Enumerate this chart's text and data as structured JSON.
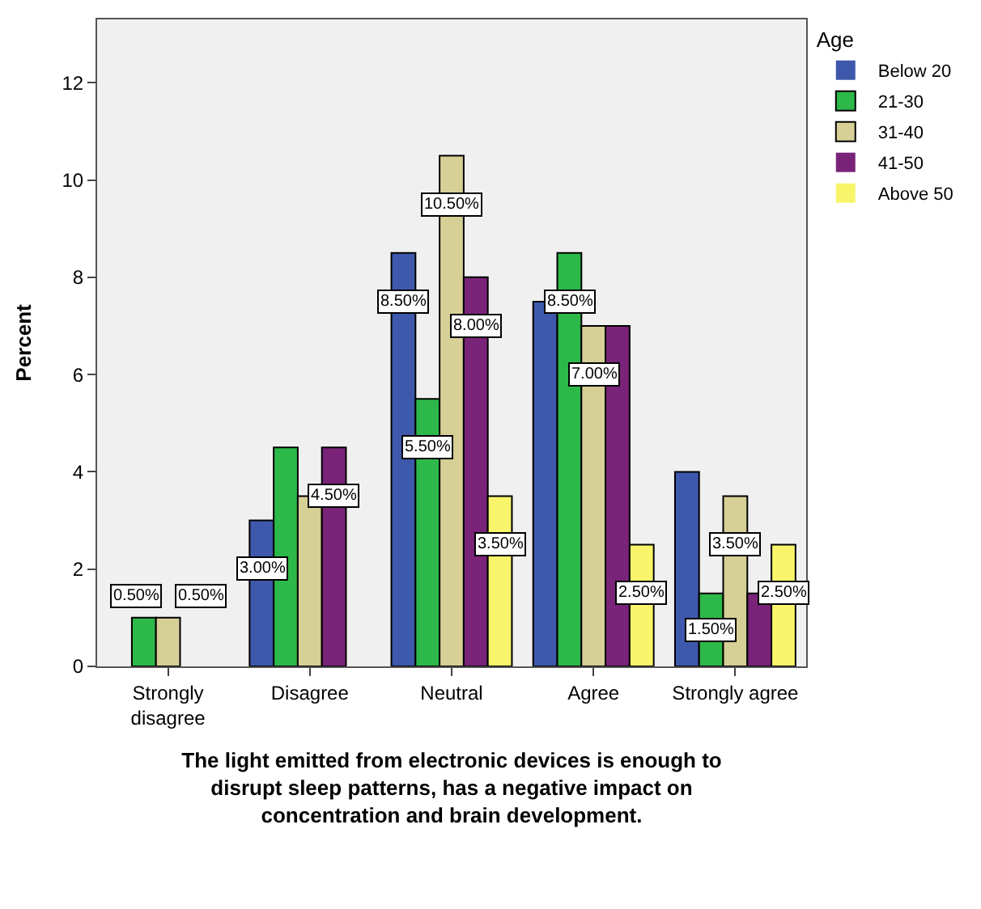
{
  "chart_data": {
    "type": "bar",
    "xlabel": "The light emitted from electronic devices is enough to disrupt sleep patterns, has a negative impact on concentration and brain development.",
    "ylabel": "Percent",
    "legend_title": "Age",
    "categories": [
      "Strongly disagree",
      "Disagree",
      "Neutral",
      "Agree",
      "Strongly agree"
    ],
    "series": [
      {
        "name": "Below 20",
        "color": "#3e58ac",
        "values": [
          0,
          3,
          8.5,
          7.5,
          4
        ],
        "value_labels": [
          null,
          "3.00%",
          "8.50%",
          null,
          null
        ]
      },
      {
        "name": "21-30",
        "color": "#2db84a",
        "values": [
          1,
          4.5,
          5.5,
          8.5,
          1.5
        ],
        "value_labels": [
          null,
          null,
          "5.50%",
          "8.50%",
          "1.50%"
        ]
      },
      {
        "name": "31-40",
        "color": "#d6cf96",
        "values": [
          1,
          3.5,
          10.5,
          7,
          3.5
        ],
        "value_labels": [
          null,
          null,
          "10.50%",
          "7.00%",
          "3.50%"
        ]
      },
      {
        "name": "41-50",
        "color": "#7a2479",
        "values": [
          0,
          4.5,
          8,
          7,
          1.5
        ],
        "value_labels": [
          null,
          "4.50%",
          "8.00%",
          null,
          null
        ]
      },
      {
        "name": "Above 50",
        "color": "#f8f56b",
        "values": [
          0,
          0,
          3.5,
          2.5,
          2.5
        ],
        "value_labels": [
          null,
          null,
          "3.50%",
          "2.50%",
          "2.50%"
        ]
      }
    ],
    "annotations": [
      "0.50%",
      "0.50%"
    ],
    "ylim": [
      0,
      13.3
    ],
    "yticks": [
      0,
      2,
      4,
      6,
      8,
      10,
      12
    ],
    "grid": false,
    "legend": "top right"
  }
}
